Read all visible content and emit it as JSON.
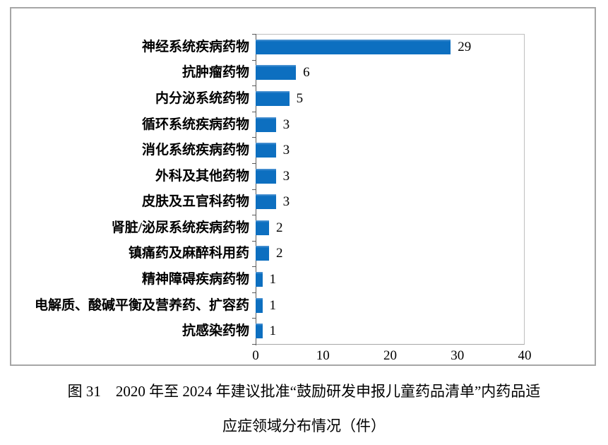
{
  "chart_data": {
    "type": "bar",
    "orientation": "horizontal",
    "title": "",
    "xlabel": "",
    "ylabel": "",
    "categories": [
      "神经系统疾病药物",
      "抗肿瘤药物",
      "内分泌系统药物",
      "循环系统疾病药物",
      "消化系统疾病药物",
      "外科及其他药物",
      "皮肤及五官科药物",
      "肾脏/泌尿系统疾病药物",
      "镇痛药及麻醉科用药",
      "精神障碍疾病药物",
      "电解质、酸碱平衡及营养药、扩容药",
      "抗感染药物"
    ],
    "values": [
      29,
      6,
      5,
      3,
      3,
      3,
      3,
      2,
      2,
      1,
      1,
      1
    ],
    "xticks": [
      0,
      10,
      20,
      30,
      40
    ],
    "xlim": [
      0,
      40
    ],
    "grid": false,
    "legend": false,
    "value_labels_shown": true,
    "bar_color": "#0d6fc0",
    "axis_color": "#595959",
    "plot_border_color": "#bfbfbf",
    "frame_border_color": "#a6a6a6"
  },
  "caption": {
    "line1": "图 31　2020 年至 2024 年建议批准“鼓励研发申报儿童药品清单”内药品适",
    "line2": "应症领域分布情况（件）"
  }
}
